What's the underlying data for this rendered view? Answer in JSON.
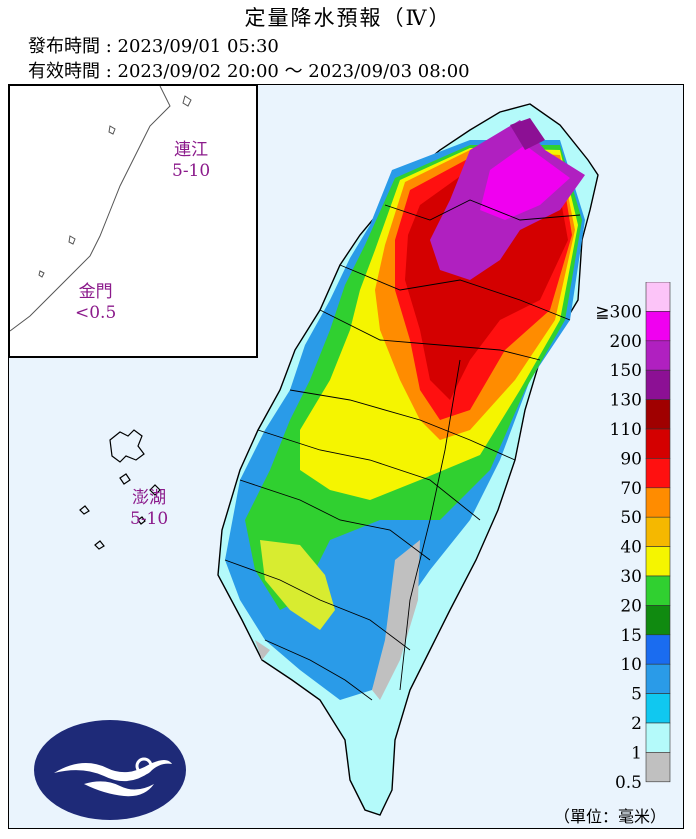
{
  "title": "定量降水預報（Ⅳ）",
  "issue_time": "發布時間 : 2023/09/01 05:30",
  "valid_time": "有效時間 : 2023/09/02 20:00 ～ 2023/09/03 08:00",
  "islands": {
    "matsu": {
      "name": "連江",
      "value": "5-10"
    },
    "kinmen": {
      "name": "金門",
      "value": "<0.5"
    },
    "penghu": {
      "name": "澎湖",
      "value": "5-10"
    }
  },
  "legend": {
    "labels": [
      "≧300",
      "200",
      "150",
      "130",
      "110",
      "90",
      "70",
      "50",
      "40",
      "30",
      "20",
      "15",
      "10",
      "5",
      "2",
      "1",
      "0.5"
    ],
    "colors": [
      "#fcc4f8",
      "#f000f0",
      "#b020c0",
      "#8c1094",
      "#a00000",
      "#d40000",
      "#ff1010",
      "#ff8c00",
      "#f5b800",
      "#f5f500",
      "#30d030",
      "#108a10",
      "#1a6cf0",
      "#2a9be8",
      "#10c8f0",
      "#b4fafa",
      "#c0c0c0"
    ]
  },
  "unit": "（單位：毫米）",
  "logo_icon": "cwa-cloud-logo-icon"
}
